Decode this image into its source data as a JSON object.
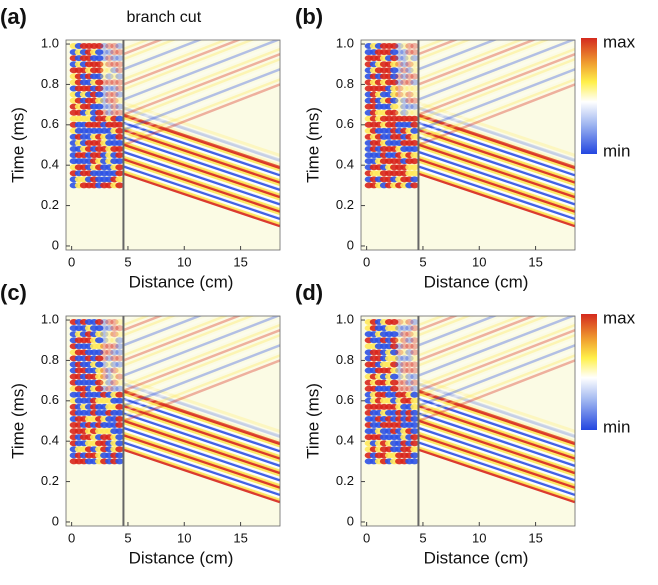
{
  "chart_data": [
    {
      "type": "heatmap",
      "panel_label": "(a)",
      "annotation": "branch cut",
      "branch_cut_x": 4.6,
      "xlabel": "Distance (cm)",
      "ylabel": "Time (ms)",
      "xlim": [
        -0.5,
        18.5
      ],
      "ylim": [
        -0.02,
        1.02
      ],
      "xticks": [
        0,
        5,
        10,
        15
      ],
      "yticks": [
        0,
        0.2,
        0.4,
        0.6,
        0.8,
        {
          "value": 1,
          "label": "1.0"
        }
      ]
    },
    {
      "type": "heatmap",
      "panel_label": "(b)",
      "branch_cut_x": 4.6,
      "xlabel": "Distance (cm)",
      "ylabel": "Time (ms)",
      "xlim": [
        -0.5,
        18.5
      ],
      "ylim": [
        -0.02,
        1.02
      ],
      "xticks": [
        0,
        5,
        10,
        15
      ],
      "yticks": [
        0,
        0.2,
        0.4,
        0.6,
        0.8,
        {
          "value": 1,
          "label": "1.0"
        }
      ],
      "colorbar": {
        "max": "max",
        "min": "min"
      }
    },
    {
      "type": "heatmap",
      "panel_label": "(c)",
      "branch_cut_x": 4.6,
      "xlabel": "Distance (cm)",
      "ylabel": "Time (ms)",
      "xlim": [
        -0.5,
        18.5
      ],
      "ylim": [
        -0.02,
        1.02
      ],
      "xticks": [
        0,
        5,
        10,
        15
      ],
      "yticks": [
        0,
        0.2,
        0.4,
        0.6,
        0.8,
        {
          "value": 1,
          "label": "1.0"
        }
      ]
    },
    {
      "type": "heatmap",
      "panel_label": "(d)",
      "branch_cut_x": 4.6,
      "xlabel": "Distance (cm)",
      "ylabel": "Time (ms)",
      "xlim": [
        -0.5,
        18.5
      ],
      "ylim": [
        -0.02,
        1.02
      ],
      "xticks": [
        0,
        5,
        10,
        15
      ],
      "yticks": [
        0,
        0.2,
        0.4,
        0.6,
        0.8,
        {
          "value": 1,
          "label": "1.0"
        }
      ],
      "colorbar": {
        "max": "max",
        "min": "min"
      }
    }
  ]
}
